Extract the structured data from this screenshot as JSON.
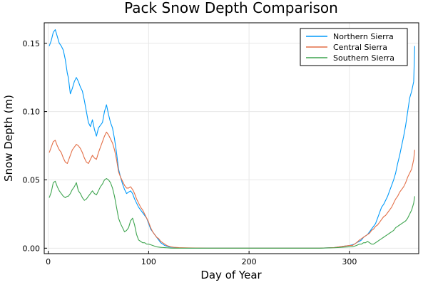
{
  "chart_data": {
    "type": "line",
    "title": "Pack Snow Depth Comparison",
    "xlabel": "Day of Year",
    "ylabel": "Snow Depth (m)",
    "xlim": [
      -4,
      369
    ],
    "ylim": [
      -0.004,
      0.165
    ],
    "x_ticks": [
      0,
      100,
      200,
      300
    ],
    "x_tick_labels": [
      "0",
      "100",
      "200",
      "300"
    ],
    "y_ticks": [
      0,
      0.05,
      0.1,
      0.15
    ],
    "y_tick_labels": [
      "0.00",
      "0.05",
      "0.10",
      "0.15"
    ],
    "grid": true,
    "legend_position": "top-right",
    "series": [
      {
        "name": "Northern Sierra",
        "color": "#009AFA",
        "x": [
          1,
          3,
          5,
          7,
          9,
          11,
          13,
          15,
          17,
          19,
          20,
          22,
          24,
          26,
          28,
          30,
          32,
          34,
          36,
          38,
          40,
          42,
          44,
          46,
          48,
          50,
          52,
          54,
          56,
          58,
          60,
          62,
          64,
          66,
          68,
          70,
          72,
          74,
          76,
          78,
          80,
          82,
          84,
          86,
          88,
          90,
          92,
          94,
          96,
          98,
          100,
          102,
          104,
          106,
          108,
          110,
          112,
          114,
          116,
          118,
          120,
          122,
          125,
          130,
          140,
          160,
          200,
          240,
          270,
          285,
          290,
          295,
          300,
          303,
          305,
          307,
          310,
          312,
          314,
          316,
          318,
          320,
          322,
          324,
          326,
          328,
          330,
          332,
          334,
          336,
          338,
          340,
          342,
          344,
          346,
          348,
          350,
          352,
          354,
          356,
          358,
          360,
          362,
          364,
          365
        ],
        "values": [
          0.148,
          0.152,
          0.158,
          0.16,
          0.155,
          0.15,
          0.148,
          0.145,
          0.138,
          0.128,
          0.125,
          0.113,
          0.117,
          0.122,
          0.125,
          0.122,
          0.118,
          0.115,
          0.108,
          0.1,
          0.092,
          0.089,
          0.094,
          0.087,
          0.082,
          0.088,
          0.09,
          0.092,
          0.1,
          0.105,
          0.098,
          0.092,
          0.088,
          0.08,
          0.07,
          0.058,
          0.052,
          0.047,
          0.043,
          0.04,
          0.041,
          0.042,
          0.04,
          0.036,
          0.033,
          0.03,
          0.028,
          0.026,
          0.024,
          0.022,
          0.018,
          0.014,
          0.012,
          0.01,
          0.008,
          0.006,
          0.004,
          0.003,
          0.002,
          0.0015,
          0.001,
          0.0008,
          0.0005,
          0.0002,
          0.0001,
          0.0,
          0.0,
          0.0,
          0.0,
          0.0005,
          0.001,
          0.0015,
          0.002,
          0.0025,
          0.003,
          0.004,
          0.005,
          0.006,
          0.008,
          0.009,
          0.01,
          0.012,
          0.014,
          0.016,
          0.018,
          0.022,
          0.026,
          0.03,
          0.032,
          0.035,
          0.038,
          0.042,
          0.046,
          0.05,
          0.055,
          0.062,
          0.068,
          0.075,
          0.082,
          0.09,
          0.1,
          0.11,
          0.115,
          0.122,
          0.148
        ]
      },
      {
        "name": "Central Sierra",
        "color": "#E36F47",
        "x": [
          1,
          3,
          5,
          7,
          9,
          11,
          13,
          15,
          17,
          19,
          20,
          22,
          24,
          26,
          28,
          30,
          32,
          34,
          36,
          38,
          40,
          42,
          44,
          46,
          48,
          50,
          52,
          54,
          56,
          58,
          60,
          62,
          64,
          66,
          68,
          70,
          72,
          74,
          76,
          78,
          80,
          82,
          84,
          86,
          88,
          90,
          92,
          94,
          96,
          98,
          100,
          102,
          104,
          106,
          108,
          110,
          112,
          114,
          116,
          118,
          120,
          122,
          125,
          130,
          140,
          160,
          200,
          240,
          270,
          285,
          290,
          295,
          300,
          303,
          305,
          307,
          310,
          312,
          314,
          316,
          318,
          320,
          322,
          324,
          326,
          328,
          330,
          332,
          334,
          336,
          338,
          340,
          342,
          344,
          346,
          348,
          350,
          352,
          354,
          356,
          358,
          360,
          362,
          364,
          365
        ],
        "values": [
          0.07,
          0.074,
          0.078,
          0.079,
          0.075,
          0.072,
          0.07,
          0.066,
          0.063,
          0.062,
          0.064,
          0.068,
          0.072,
          0.074,
          0.076,
          0.075,
          0.073,
          0.07,
          0.066,
          0.063,
          0.062,
          0.065,
          0.068,
          0.066,
          0.065,
          0.07,
          0.074,
          0.078,
          0.082,
          0.085,
          0.083,
          0.08,
          0.077,
          0.072,
          0.065,
          0.056,
          0.052,
          0.049,
          0.046,
          0.044,
          0.044,
          0.045,
          0.043,
          0.04,
          0.036,
          0.033,
          0.03,
          0.028,
          0.025,
          0.022,
          0.019,
          0.015,
          0.012,
          0.01,
          0.008,
          0.007,
          0.005,
          0.004,
          0.003,
          0.002,
          0.0015,
          0.001,
          0.0007,
          0.0004,
          0.0002,
          0.0,
          0.0,
          0.0,
          0.0,
          0.0005,
          0.001,
          0.0015,
          0.002,
          0.002,
          0.003,
          0.004,
          0.006,
          0.007,
          0.008,
          0.009,
          0.01,
          0.011,
          0.013,
          0.014,
          0.016,
          0.017,
          0.019,
          0.021,
          0.023,
          0.024,
          0.026,
          0.028,
          0.03,
          0.033,
          0.036,
          0.038,
          0.041,
          0.043,
          0.045,
          0.048,
          0.052,
          0.055,
          0.058,
          0.065,
          0.072
        ]
      },
      {
        "name": "Southern Sierra",
        "color": "#3DA44E",
        "x": [
          1,
          3,
          5,
          7,
          9,
          11,
          13,
          15,
          17,
          19,
          20,
          22,
          24,
          26,
          28,
          30,
          32,
          34,
          36,
          38,
          40,
          42,
          44,
          46,
          48,
          50,
          52,
          54,
          56,
          58,
          60,
          62,
          64,
          66,
          68,
          70,
          72,
          74,
          76,
          78,
          80,
          82,
          84,
          86,
          88,
          90,
          92,
          94,
          96,
          98,
          100,
          102,
          104,
          106,
          108,
          110,
          112,
          114,
          116,
          118,
          120,
          122,
          125,
          130,
          140,
          160,
          200,
          240,
          270,
          285,
          290,
          295,
          300,
          303,
          305,
          307,
          310,
          312,
          314,
          316,
          318,
          320,
          322,
          324,
          326,
          328,
          330,
          332,
          334,
          336,
          338,
          340,
          342,
          344,
          346,
          348,
          350,
          352,
          354,
          356,
          358,
          360,
          362,
          364,
          365
        ],
        "values": [
          0.037,
          0.041,
          0.048,
          0.049,
          0.045,
          0.042,
          0.04,
          0.038,
          0.037,
          0.038,
          0.038,
          0.04,
          0.043,
          0.045,
          0.048,
          0.042,
          0.04,
          0.037,
          0.035,
          0.036,
          0.038,
          0.04,
          0.042,
          0.04,
          0.039,
          0.042,
          0.045,
          0.047,
          0.05,
          0.051,
          0.05,
          0.048,
          0.044,
          0.038,
          0.03,
          0.022,
          0.018,
          0.015,
          0.012,
          0.013,
          0.015,
          0.02,
          0.022,
          0.017,
          0.01,
          0.006,
          0.005,
          0.004,
          0.004,
          0.003,
          0.003,
          0.0025,
          0.002,
          0.0015,
          0.001,
          0.0008,
          0.0006,
          0.0005,
          0.0004,
          0.0003,
          0.0002,
          0.0001,
          0.0,
          0.0,
          0.0,
          0.0,
          0.0,
          0.0,
          0.0,
          0.0003,
          0.0005,
          0.0008,
          0.001,
          0.001,
          0.0015,
          0.002,
          0.003,
          0.003,
          0.004,
          0.004,
          0.005,
          0.004,
          0.003,
          0.003,
          0.004,
          0.005,
          0.006,
          0.007,
          0.008,
          0.009,
          0.01,
          0.011,
          0.012,
          0.013,
          0.015,
          0.016,
          0.017,
          0.018,
          0.019,
          0.02,
          0.022,
          0.025,
          0.028,
          0.033,
          0.038
        ]
      }
    ]
  }
}
